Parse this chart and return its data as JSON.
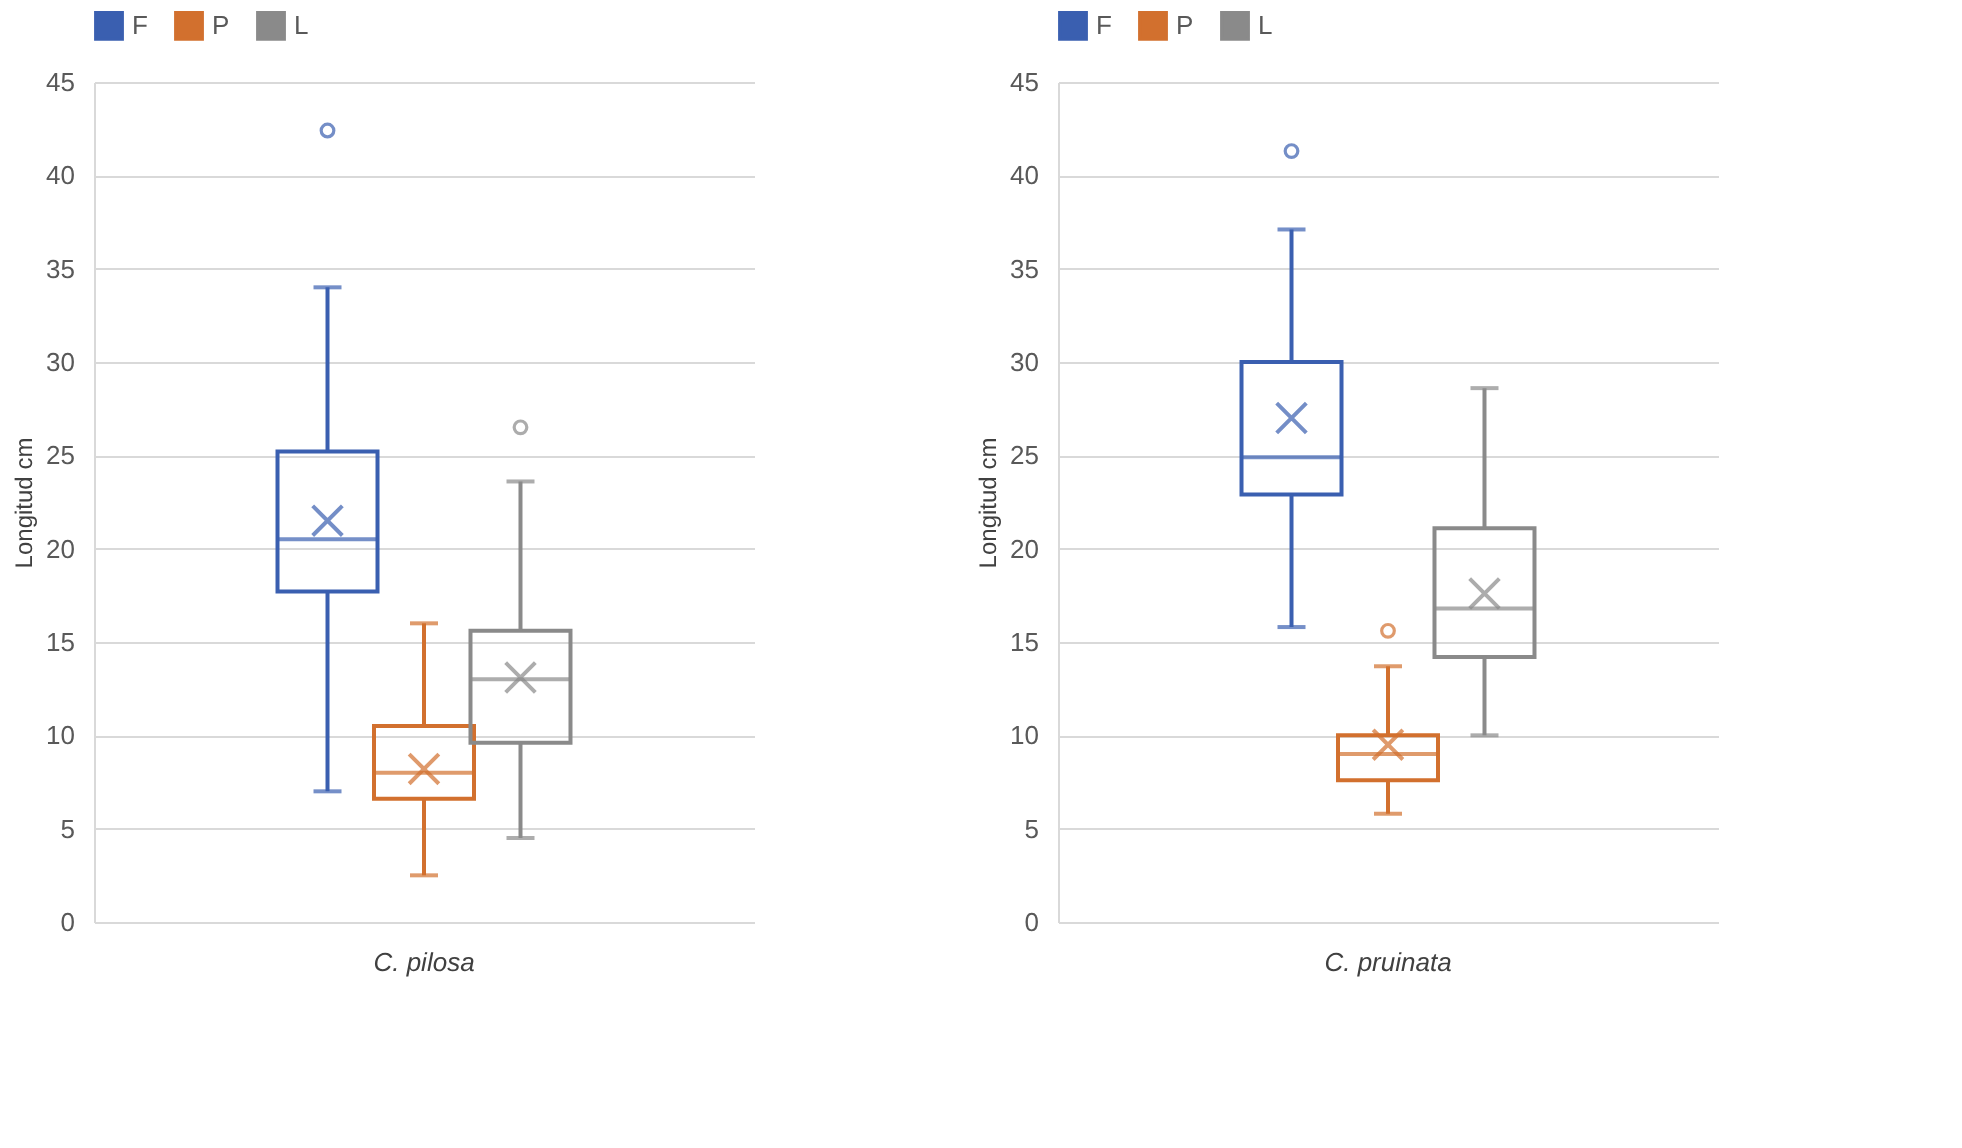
{
  "chart_data": [
    {
      "type": "box",
      "categories": [
        "C. pilosa"
      ],
      "ylabel": "Longitud cm",
      "ylim": [
        0,
        45
      ],
      "yticks": [
        0,
        5,
        10,
        15,
        20,
        25,
        30,
        35,
        40,
        45
      ],
      "grid": "y",
      "legend": "top",
      "series": [
        {
          "name": "F",
          "color": "#3a5fb0",
          "boxes": [
            {
              "low": 7,
              "q1": 17.7,
              "median": 20.5,
              "q3": 25.2,
              "high": 34,
              "mean": 21.5,
              "outliers": [
                42.4
              ]
            }
          ]
        },
        {
          "name": "P",
          "color": "#d2702e",
          "boxes": [
            {
              "low": 2.5,
              "q1": 6.6,
              "median": 8,
              "q3": 10.5,
              "high": 16,
              "mean": 8.2
            }
          ]
        },
        {
          "name": "L",
          "color": "#8a8a8a",
          "boxes": [
            {
              "low": 4.5,
              "q1": 9.6,
              "median": 13,
              "q3": 15.6,
              "high": 23.6,
              "mean": 13.1,
              "outliers": [
                26.5
              ]
            }
          ]
        }
      ]
    },
    {
      "type": "box",
      "categories": [
        "C. pruinata"
      ],
      "ylabel": "Longitud cm",
      "ylim": [
        0,
        45
      ],
      "yticks": [
        0,
        5,
        10,
        15,
        20,
        25,
        30,
        35,
        40,
        45
      ],
      "grid": "y",
      "legend": "top",
      "series": [
        {
          "name": "F",
          "color": "#3a5fb0",
          "boxes": [
            {
              "low": 15.8,
              "q1": 22.9,
              "median": 24.9,
              "q3": 30,
              "high": 37.1,
              "mean": 27,
              "outliers": [
                41.3
              ]
            }
          ]
        },
        {
          "name": "P",
          "color": "#d2702e",
          "boxes": [
            {
              "low": 5.8,
              "q1": 7.6,
              "median": 9,
              "q3": 10,
              "high": 13.7,
              "mean": 9.5,
              "outliers": [
                15.6
              ]
            }
          ]
        },
        {
          "name": "L",
          "color": "#8a8a8a",
          "boxes": [
            {
              "low": 10,
              "q1": 14.2,
              "median": 16.8,
              "q3": 21.1,
              "high": 28.6,
              "mean": 17.6
            }
          ]
        }
      ]
    }
  ]
}
